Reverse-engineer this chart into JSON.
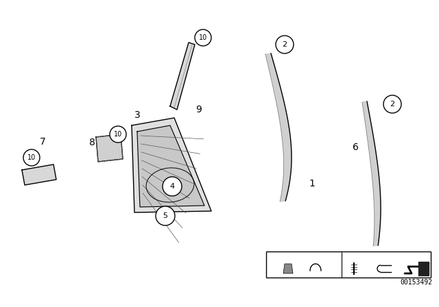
{
  "bg_color": "#ffffff",
  "line_color": "#000000",
  "fig_width": 6.4,
  "fig_height": 4.48,
  "dpi": 100,
  "part_number": "00153492"
}
